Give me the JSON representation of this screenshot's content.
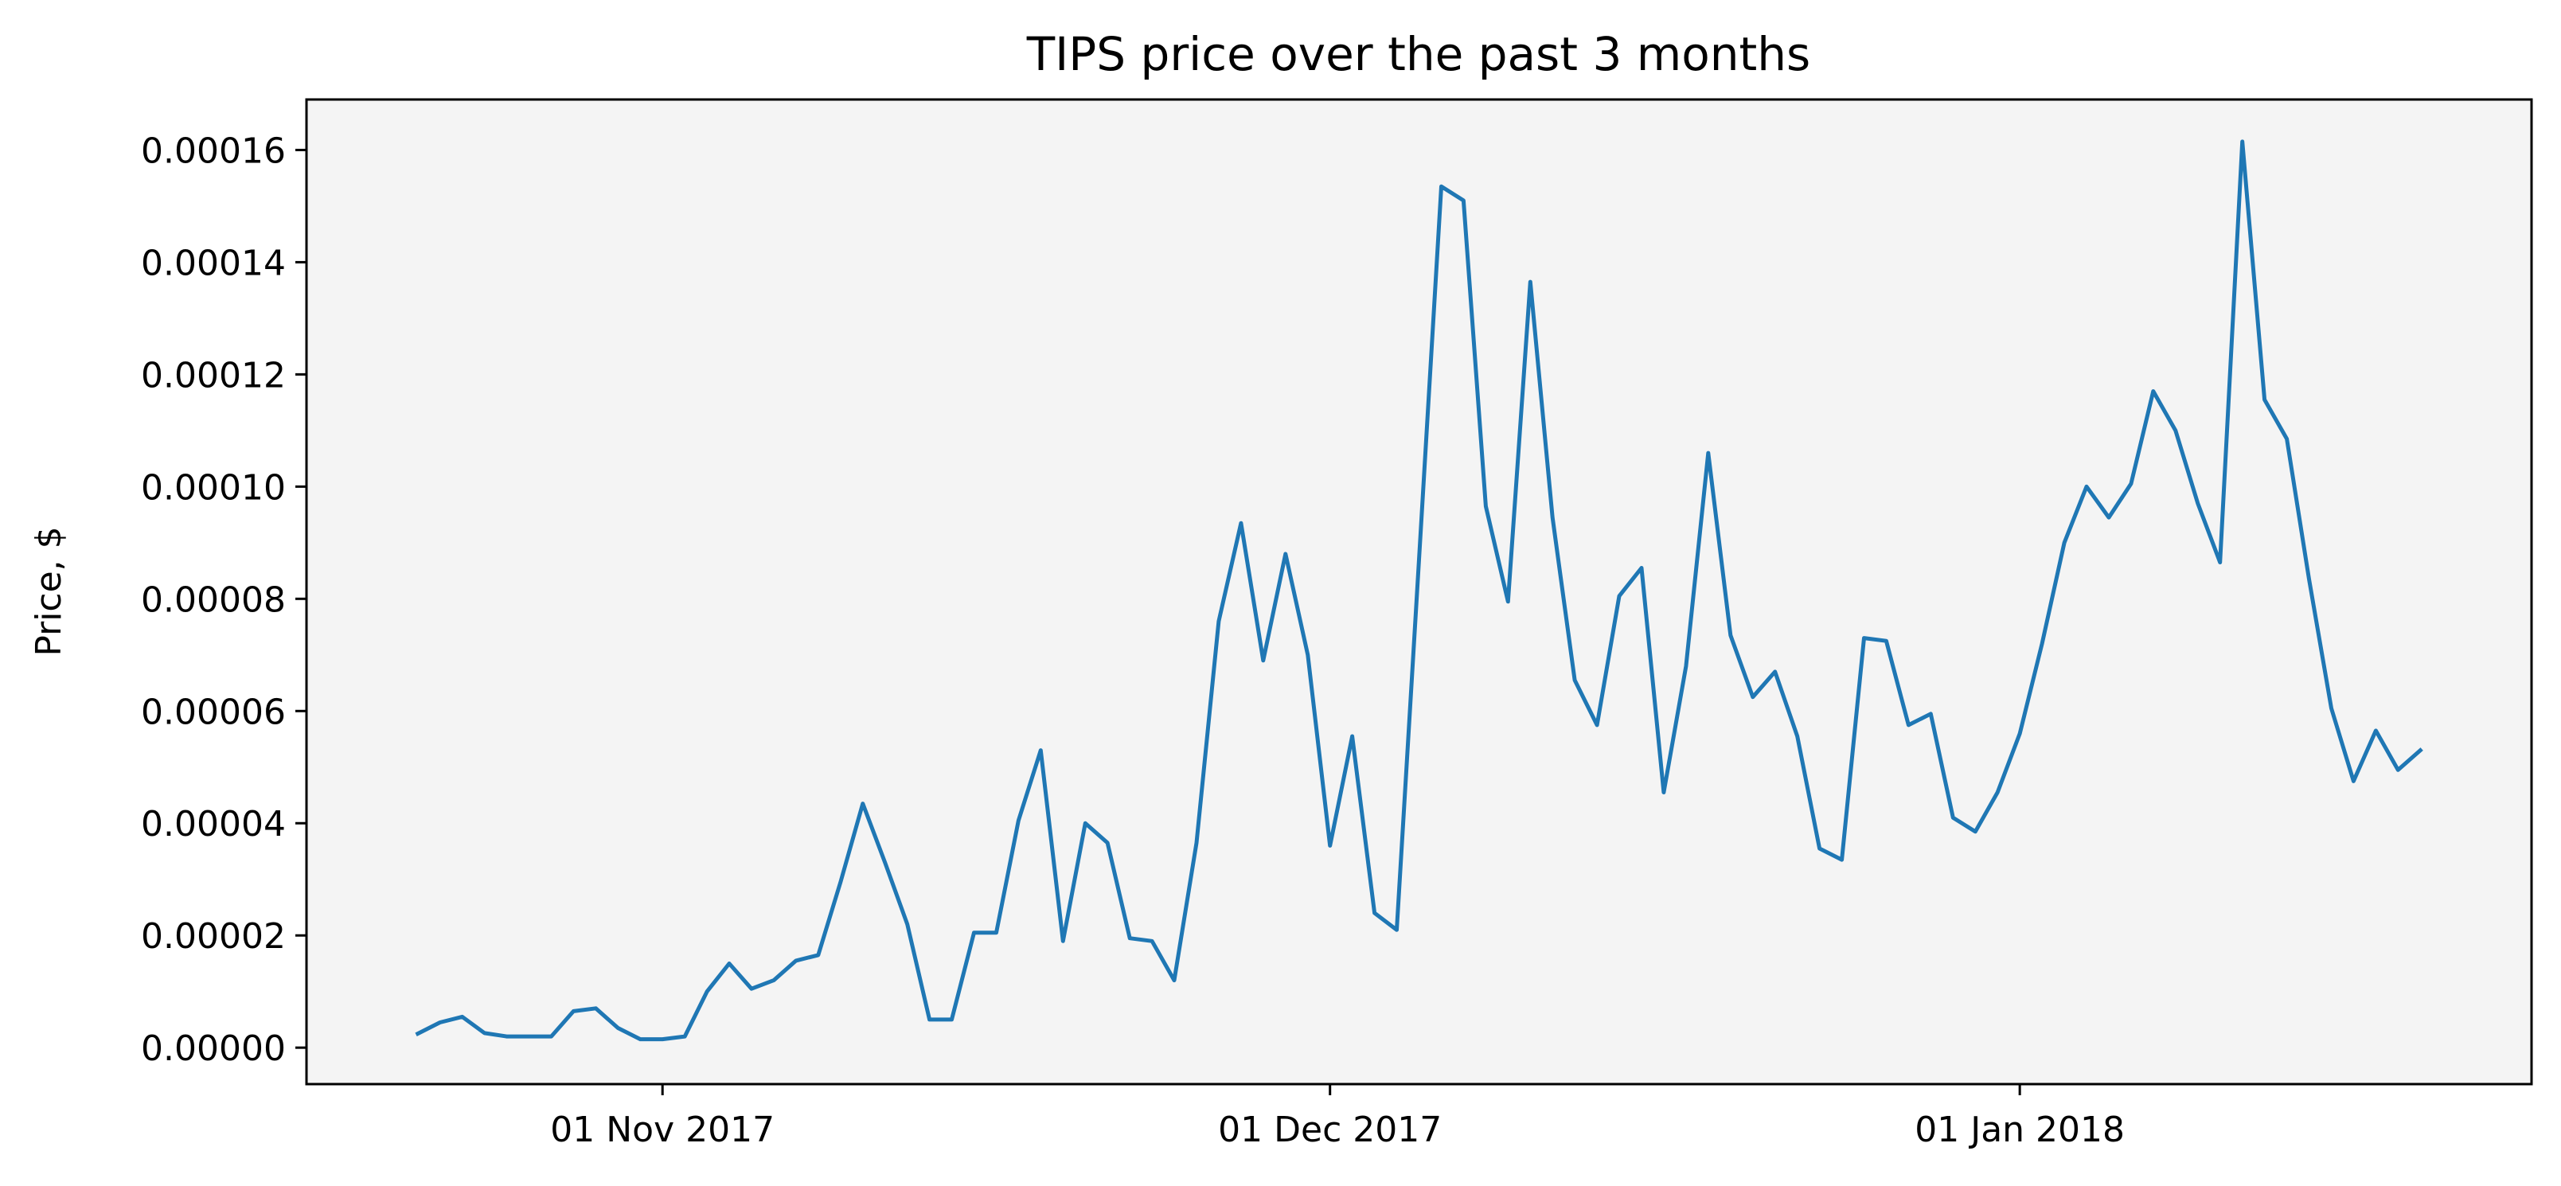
{
  "chart_data": {
    "type": "line",
    "title": "TIPS price over the past 3 months",
    "xlabel": "",
    "ylabel": "Price, $",
    "grid": false,
    "line_color": "#1f77b4",
    "plot_background": "#f4f4f4",
    "x_range": [
      "2017-10-16",
      "2018-01-24"
    ],
    "ylim": [
      -6.5e-06,
      0.000169
    ],
    "x_ticks": [
      {
        "date": "2017-11-01",
        "label": "01 Nov 2017"
      },
      {
        "date": "2017-12-01",
        "label": "01 Dec 2017"
      },
      {
        "date": "2018-01-01",
        "label": "01 Jan 2018"
      }
    ],
    "y_ticks": [
      {
        "value": 0.0,
        "label": "0.00000"
      },
      {
        "value": 2e-05,
        "label": "0.00002"
      },
      {
        "value": 4e-05,
        "label": "0.00004"
      },
      {
        "value": 6e-05,
        "label": "0.00006"
      },
      {
        "value": 8e-05,
        "label": "0.00008"
      },
      {
        "value": 0.0001,
        "label": "0.00010"
      },
      {
        "value": 0.00012,
        "label": "0.00012"
      },
      {
        "value": 0.00014,
        "label": "0.00014"
      },
      {
        "value": 0.00016,
        "label": "0.00016"
      }
    ],
    "series": [
      {
        "values": [
          [
            "2017-10-21",
            2.5e-06
          ],
          [
            "2017-10-22",
            4.5e-06
          ],
          [
            "2017-10-23",
            5.5e-06
          ],
          [
            "2017-10-24",
            2.6e-06
          ],
          [
            "2017-10-25",
            2e-06
          ],
          [
            "2017-10-26",
            2e-06
          ],
          [
            "2017-10-27",
            2e-06
          ],
          [
            "2017-10-28",
            6.5e-06
          ],
          [
            "2017-10-29",
            7e-06
          ],
          [
            "2017-10-30",
            3.5e-06
          ],
          [
            "2017-10-31",
            1.5e-06
          ],
          [
            "2017-11-01",
            1.5e-06
          ],
          [
            "2017-11-02",
            2e-06
          ],
          [
            "2017-11-03",
            1e-05
          ],
          [
            "2017-11-04",
            1.5e-05
          ],
          [
            "2017-11-05",
            1.05e-05
          ],
          [
            "2017-11-06",
            1.2e-05
          ],
          [
            "2017-11-07",
            1.55e-05
          ],
          [
            "2017-11-08",
            1.65e-05
          ],
          [
            "2017-11-09",
            2.95e-05
          ],
          [
            "2017-11-10",
            4.35e-05
          ],
          [
            "2017-11-11",
            3.3e-05
          ],
          [
            "2017-11-12",
            2.2e-05
          ],
          [
            "2017-11-13",
            5e-06
          ],
          [
            "2017-11-14",
            5e-06
          ],
          [
            "2017-11-15",
            2.05e-05
          ],
          [
            "2017-11-16",
            2.05e-05
          ],
          [
            "2017-11-17",
            4.05e-05
          ],
          [
            "2017-11-18",
            5.3e-05
          ],
          [
            "2017-11-19",
            1.9e-05
          ],
          [
            "2017-11-20",
            4e-05
          ],
          [
            "2017-11-21",
            3.65e-05
          ],
          [
            "2017-11-22",
            1.95e-05
          ],
          [
            "2017-11-23",
            1.9e-05
          ],
          [
            "2017-11-24",
            1.2e-05
          ],
          [
            "2017-11-25",
            3.65e-05
          ],
          [
            "2017-11-26",
            7.6e-05
          ],
          [
            "2017-11-27",
            9.35e-05
          ],
          [
            "2017-11-28",
            6.9e-05
          ],
          [
            "2017-11-29",
            8.8e-05
          ],
          [
            "2017-11-30",
            7e-05
          ],
          [
            "2017-12-01",
            3.6e-05
          ],
          [
            "2017-12-02",
            5.55e-05
          ],
          [
            "2017-12-03",
            2.4e-05
          ],
          [
            "2017-12-04",
            2.1e-05
          ],
          [
            "2017-12-05",
            8.7e-05
          ],
          [
            "2017-12-06",
            0.0001535
          ],
          [
            "2017-12-07",
            0.000151
          ],
          [
            "2017-12-08",
            9.65e-05
          ],
          [
            "2017-12-09",
            7.95e-05
          ],
          [
            "2017-12-10",
            0.0001365
          ],
          [
            "2017-12-11",
            9.45e-05
          ],
          [
            "2017-12-12",
            6.55e-05
          ],
          [
            "2017-12-13",
            5.75e-05
          ],
          [
            "2017-12-14",
            8.05e-05
          ],
          [
            "2017-12-15",
            8.55e-05
          ],
          [
            "2017-12-16",
            4.55e-05
          ],
          [
            "2017-12-17",
            6.8e-05
          ],
          [
            "2017-12-18",
            0.000106
          ],
          [
            "2017-12-19",
            7.35e-05
          ],
          [
            "2017-12-20",
            6.25e-05
          ],
          [
            "2017-12-21",
            6.7e-05
          ],
          [
            "2017-12-22",
            5.55e-05
          ],
          [
            "2017-12-23",
            3.55e-05
          ],
          [
            "2017-12-24",
            3.35e-05
          ],
          [
            "2017-12-25",
            7.3e-05
          ],
          [
            "2017-12-26",
            7.25e-05
          ],
          [
            "2017-12-27",
            5.75e-05
          ],
          [
            "2017-12-28",
            5.95e-05
          ],
          [
            "2017-12-29",
            4.1e-05
          ],
          [
            "2017-12-30",
            3.85e-05
          ],
          [
            "2017-12-31",
            4.55e-05
          ],
          [
            "2018-01-01",
            5.6e-05
          ],
          [
            "2018-01-02",
            7.2e-05
          ],
          [
            "2018-01-03",
            9e-05
          ],
          [
            "2018-01-04",
            0.0001
          ],
          [
            "2018-01-05",
            9.45e-05
          ],
          [
            "2018-01-06",
            0.0001005
          ],
          [
            "2018-01-07",
            0.000117
          ],
          [
            "2018-01-08",
            0.00011
          ],
          [
            "2018-01-09",
            9.7e-05
          ],
          [
            "2018-01-10",
            8.65e-05
          ],
          [
            "2018-01-11",
            0.0001615
          ],
          [
            "2018-01-12",
            0.0001155
          ],
          [
            "2018-01-13",
            0.0001085
          ],
          [
            "2018-01-14",
            8.35e-05
          ],
          [
            "2018-01-15",
            6.05e-05
          ],
          [
            "2018-01-16",
            4.75e-05
          ],
          [
            "2018-01-17",
            5.65e-05
          ],
          [
            "2018-01-18",
            4.95e-05
          ],
          [
            "2018-01-19",
            5.3e-05
          ]
        ]
      }
    ]
  }
}
